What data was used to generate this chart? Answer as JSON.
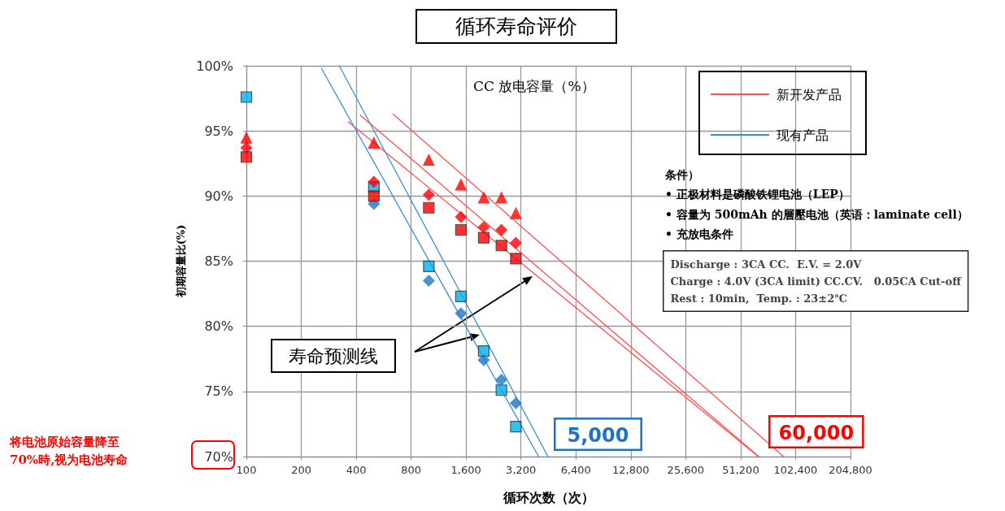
{
  "chart_data": {
    "type": "scatter",
    "title": "循环寿命评价",
    "xlabel": "循环次数（次）",
    "ylabel": "初期容量比(%)",
    "log": "x",
    "grid": true,
    "legend": "top right",
    "xlim": [
      100,
      204800
    ],
    "ylim": [
      70,
      100
    ],
    "xticks": [
      100,
      200,
      400,
      {
        "value": 800,
        "label": "800"
      },
      {
        "value": 1600,
        "label": "1,600"
      },
      {
        "value": 3200,
        "label": "3,200"
      },
      {
        "value": 6400,
        "label": "6,400"
      },
      {
        "value": 12800,
        "label": "12,800"
      },
      {
        "value": 25600,
        "label": "25,600"
      },
      {
        "value": 51200,
        "label": "51,200"
      },
      {
        "value": 102400,
        "label": "102,400"
      },
      {
        "value": 204800,
        "label": "204,800"
      }
    ],
    "yticks": [
      {
        "value": 70,
        "label": "70%"
      },
      {
        "value": 75,
        "label": "75%"
      },
      {
        "value": 80,
        "label": "80%"
      },
      {
        "value": 85,
        "label": "85%"
      },
      {
        "value": 90,
        "label": "90%"
      },
      {
        "value": 95,
        "label": "95%"
      },
      {
        "value": 100,
        "label": "100%"
      }
    ],
    "series": [
      {
        "name": "新开发产品",
        "type": "line",
        "marker": "none",
        "color": "#ff5050",
        "x": [
          636,
          88000
        ],
        "values": [
          96.3,
          70
        ]
      },
      {
        "type": "line",
        "marker": "none",
        "color": "#ff5050",
        "x": [
          422,
          64400
        ],
        "values": [
          96.2,
          70
        ]
      },
      {
        "type": "line",
        "marker": "none",
        "color": "#ff5050",
        "x": [
          362,
          64000
        ],
        "values": [
          95.7,
          70
        ]
      },
      {
        "name": "现有产品",
        "type": "line",
        "marker": "none",
        "color": "#3a8fd0",
        "x": [
          258,
          4000
        ],
        "values": [
          99.8,
          70
        ]
      },
      {
        "type": "line",
        "marker": "none",
        "color": "#3a8fd0",
        "x": [
          323,
          4500
        ],
        "values": [
          100,
          70
        ]
      },
      {
        "marker": "square",
        "color": "#00b0f0",
        "x": [
          100,
          500,
          1000,
          1500,
          2000,
          2500,
          3000
        ],
        "values": [
          97.6,
          90.7,
          84.6,
          82.3,
          78.1,
          75.1,
          72.3
        ]
      },
      {
        "marker": "diamond",
        "color": "#1f77c4",
        "x": [
          500,
          1000,
          1500,
          2000,
          2500,
          3000
        ],
        "values": [
          89.4,
          83.5,
          81.0,
          77.4,
          75.9,
          74.1
        ]
      },
      {
        "marker": "triangle",
        "color": "#ff0000",
        "x": [
          100,
          500,
          1000,
          1500,
          2000,
          2500,
          3000
        ],
        "values": [
          94.5,
          94.1,
          92.8,
          90.9,
          89.9,
          89.9,
          88.7
        ]
      },
      {
        "marker": "diamond",
        "color": "#ff0000",
        "x": [
          100,
          500,
          1000,
          1500,
          2000,
          2500,
          3000
        ],
        "values": [
          93.7,
          91.1,
          90.1,
          88.4,
          87.6,
          87.4,
          86.4
        ]
      },
      {
        "marker": "square",
        "color": "#ff0000",
        "x": [
          100,
          500,
          1000,
          1500,
          2000,
          2500,
          3000
        ],
        "values": [
          93.0,
          90.0,
          89.1,
          87.4,
          86.8,
          86.2,
          85.2
        ]
      }
    ],
    "annotations": [
      "CC 放电容量（%）",
      "条件）",
      "• 正极材料是磷酸铁锂电池（LEP）",
      "• 容量为 500mAh 的層壓电池（英语：laminate cell）",
      "• 充放电条件",
      "Discharge : 3CA CC.  E.V. = 2.0V\nCharge : 4.0V (3CA limit) CC.CV.   0.05CA Cut-off\nRest : 10min,  Temp. : 23±2℃",
      "寿命预测线",
      "5,000",
      "60,000",
      "将电池原始容量降至\n70%時,视为电池寿命"
    ]
  }
}
